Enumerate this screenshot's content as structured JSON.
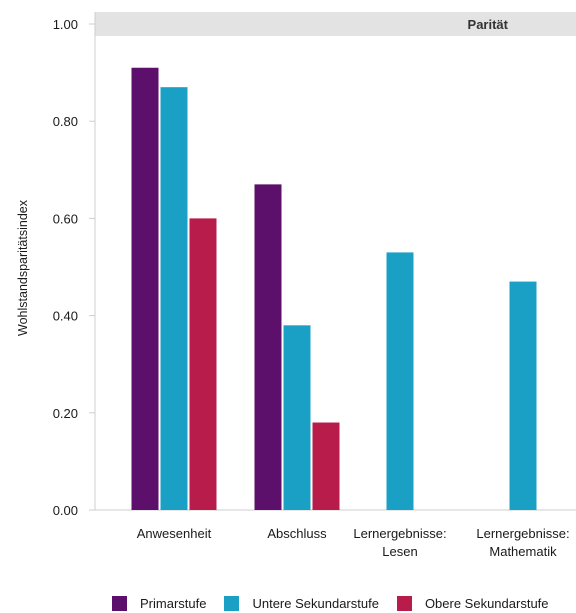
{
  "chart_data": {
    "type": "bar",
    "categories": [
      [
        "Anwesenheit"
      ],
      [
        "Abschluss"
      ],
      [
        "Lernergebnisse:",
        "Lesen"
      ],
      [
        "Lernergebnisse:",
        "Mathematik"
      ]
    ],
    "series": [
      {
        "name": "Primarstufe",
        "color": "#5c0f6b",
        "values": [
          0.91,
          0.67,
          null,
          null
        ]
      },
      {
        "name": "Untere Sekundarstufe",
        "color": "#1aa0c4",
        "values": [
          0.87,
          0.38,
          0.53,
          0.47
        ]
      },
      {
        "name": "Obere Sekundarstufe",
        "color": "#b81c4b",
        "values": [
          0.6,
          0.18,
          null,
          null
        ]
      }
    ],
    "ylabel": "Wohlstandsparitätsindex",
    "ylim": [
      0,
      1
    ],
    "yticks": [
      "0.00",
      "0.20",
      "0.40",
      "0.60",
      "0.80",
      "1.00"
    ],
    "parity_label": "Parität",
    "grid": false,
    "legend_position": "bottom"
  }
}
